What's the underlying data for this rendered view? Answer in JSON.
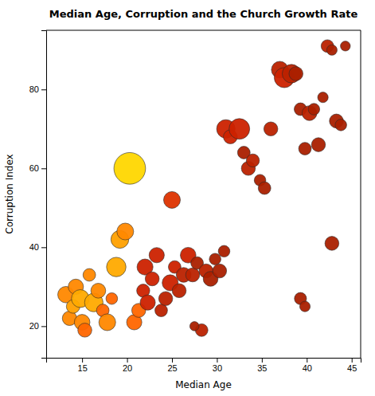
{
  "chart_data": {
    "type": "scatter",
    "title": "Median Age, Corruption and the Church Growth Rate",
    "xlabel": "Median Age",
    "ylabel": "Corruption Index",
    "xlim": [
      11,
      46
    ],
    "ylim": [
      12,
      95
    ],
    "xticks": [
      15,
      20,
      25,
      30,
      35,
      40,
      45
    ],
    "yticks": [
      20,
      40,
      60,
      80
    ],
    "grid": false,
    "x": [
      13.2,
      13.6,
      14.0,
      14.3,
      14.8,
      15.0,
      15.3,
      15.8,
      16.3,
      16.8,
      17.3,
      17.8,
      18.3,
      18.8,
      19.2,
      19.8,
      20.3,
      20.8,
      21.3,
      21.8,
      22.0,
      22.3,
      22.8,
      23.3,
      23.8,
      24.3,
      24.8,
      25.0,
      25.3,
      25.8,
      26.3,
      26.8,
      27.3,
      27.8,
      28.3,
      28.8,
      29.3,
      27.5,
      29.8,
      30.3,
      30.8,
      31.0,
      31.5,
      32.5,
      33.0,
      33.5,
      34.0,
      34.8,
      35.3,
      36.0,
      37.0,
      37.5,
      38.3,
      38.8,
      39.3,
      39.8,
      40.3,
      40.8,
      41.3,
      41.8,
      42.3,
      42.8,
      43.3,
      43.8,
      44.3,
      39.3,
      39.8,
      42.8
    ],
    "values": [
      28,
      22,
      25,
      30,
      27,
      21,
      19,
      33,
      26,
      29,
      24,
      21,
      27,
      35,
      42,
      44,
      60,
      21,
      24,
      29,
      35,
      26,
      32,
      38,
      24,
      27,
      31,
      52,
      35,
      29,
      33,
      38,
      33,
      36,
      19,
      34,
      32,
      20,
      37,
      34,
      39,
      70,
      68,
      70,
      64,
      60,
      62,
      57,
      55,
      70,
      85,
      83,
      84,
      84,
      75,
      65,
      74,
      75,
      66,
      78,
      91,
      90,
      72,
      71,
      91,
      27,
      25,
      41
    ],
    "sizes": [
      220,
      170,
      150,
      190,
      260,
      200,
      160,
      130,
      280,
      180,
      130,
      230,
      110,
      310,
      260,
      230,
      820,
      190,
      160,
      140,
      210,
      190,
      160,
      190,
      130,
      160,
      210,
      230,
      130,
      160,
      180,
      200,
      160,
      130,
      130,
      160,
      180,
      70,
      110,
      160,
      110,
      280,
      160,
      350,
      130,
      160,
      140,
      110,
      130,
      160,
      230,
      330,
      280,
      160,
      130,
      130,
      180,
      110,
      160,
      90,
      130,
      90,
      160,
      110,
      80,
      120,
      90,
      160
    ],
    "colors": [
      "#FF8800",
      "#FF8800",
      "#FFA000",
      "#FF8800",
      "#FFAA00",
      "#FF8800",
      "#FF6600",
      "#FF8800",
      "#FFAA00",
      "#FF8800",
      "#FF6600",
      "#FF8800",
      "#FF6600",
      "#FFAA00",
      "#FFA000",
      "#FF8800",
      "#FFD700",
      "#FF6600",
      "#FF6600",
      "#CC2200",
      "#CC2200",
      "#CC2200",
      "#CC2200",
      "#CC2200",
      "#BB2200",
      "#BB2200",
      "#CC2200",
      "#DD3300",
      "#CC2200",
      "#BB2200",
      "#BB2200",
      "#CC2200",
      "#BB2200",
      "#AA2000",
      "#BB2200",
      "#BB2200",
      "#AA2000",
      "#AA2000",
      "#AA2000",
      "#AA2000",
      "#AA2000",
      "#CC2200",
      "#CC2200",
      "#CC2200",
      "#AA2000",
      "#BB2200",
      "#BB2200",
      "#AA2000",
      "#AA2000",
      "#BB2200",
      "#BB2200",
      "#CC2200",
      "#BB2200",
      "#AA2000",
      "#AA2000",
      "#AA2000",
      "#BB2200",
      "#AA2000",
      "#AA2000",
      "#AA2000",
      "#BB2200",
      "#AA2000",
      "#AA2000",
      "#AA2000",
      "#AA2000",
      "#AA2000",
      "#AA2000",
      "#AA2000"
    ]
  }
}
